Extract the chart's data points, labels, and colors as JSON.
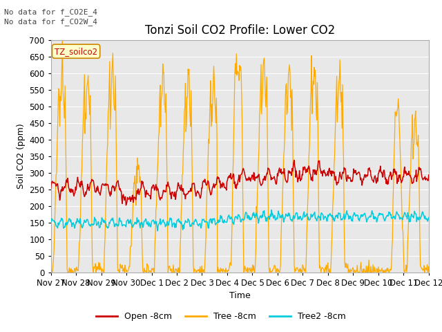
{
  "title": "Tonzi Soil CO2 Profile: Lower CO2",
  "ylabel": "Soil CO2 (ppm)",
  "xlabel": "Time",
  "ylim": [
    0,
    700
  ],
  "yticks": [
    0,
    50,
    100,
    150,
    200,
    250,
    300,
    350,
    400,
    450,
    500,
    550,
    600,
    650,
    700
  ],
  "x_labels": [
    "Nov 27",
    "Nov 28",
    "Nov 29",
    "Nov 30",
    "Dec 1",
    "Dec 2",
    "Dec 3",
    "Dec 4",
    "Dec 5",
    "Dec 6",
    "Dec 7",
    "Dec 8",
    "Dec 9",
    "Dec 10",
    "Dec 11",
    "Dec 12"
  ],
  "annotation1": "No data for f_CO2E_4",
  "annotation2": "No data for f_CO2W_4",
  "box_label": "TZ_soilco2",
  "legend_entries": [
    "Open -8cm",
    "Tree -8cm",
    "Tree2 -8cm"
  ],
  "line_colors": [
    "#cc0000",
    "#ffaa00",
    "#00ccdd"
  ],
  "background_color": "#ffffff",
  "plot_bg_color": "#e8e8e8",
  "title_fontsize": 12,
  "label_fontsize": 9,
  "tick_fontsize": 8.5
}
